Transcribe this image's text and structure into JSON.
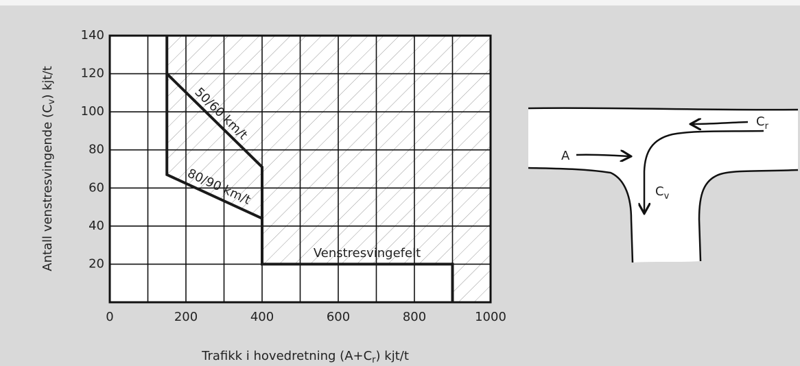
{
  "chart_data": {
    "type": "line",
    "xlabel_parts": [
      "Trafikk i hovedretning (A+C",
      "r",
      ") kjt/t"
    ],
    "ylabel_parts": [
      "Antall venstresvingende (C",
      "v",
      ") kjt/t"
    ],
    "xlim": [
      0,
      1000
    ],
    "ylim": [
      0,
      140
    ],
    "xticks": [
      0,
      200,
      400,
      600,
      800,
      1000
    ],
    "xminor": [
      100,
      300,
      500,
      700,
      900
    ],
    "yticks": [
      20,
      40,
      60,
      80,
      100,
      120,
      140
    ],
    "grid": true,
    "hatch_region": true,
    "series": [
      {
        "name": "50/60 km/t",
        "color": "#1a1a1a",
        "x": [
          150,
          400,
          400
        ],
        "values": [
          120,
          71,
          44
        ]
      },
      {
        "name": "80/90 km/t",
        "color": "#1a1a1a",
        "x": [
          150,
          150,
          400,
          400,
          900,
          900
        ],
        "values": [
          140,
          67,
          44,
          20,
          20,
          0
        ]
      }
    ],
    "annotations": [
      "Venstresvingefelt"
    ]
  },
  "diagram": {
    "labels": [
      {
        "main": "A"
      },
      {
        "main": "C",
        "sub": "r"
      },
      {
        "main": "C",
        "sub": "v"
      }
    ]
  }
}
